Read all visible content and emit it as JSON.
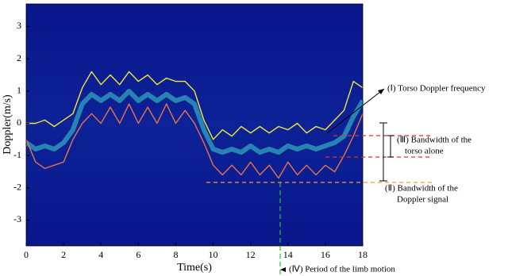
{
  "chart_data": {
    "type": "line",
    "x_label": "Time(s)",
    "y_label": "Doppler(m/s)",
    "x": [
      0,
      0.5,
      1,
      1.5,
      2,
      2.5,
      3,
      3.5,
      4,
      4.5,
      5,
      5.5,
      6,
      6.5,
      7,
      7.5,
      8,
      8.5,
      9,
      9.5,
      10,
      10.5,
      11,
      11.5,
      12,
      12.5,
      13,
      13.5,
      14,
      14.5,
      15,
      15.5,
      16,
      16.5,
      17,
      17.5,
      18
    ],
    "series": [
      {
        "color": "#3fd6d0",
        "values": [
          -0.6,
          -0.8,
          -0.7,
          -0.8,
          -0.6,
          -0.2,
          0.6,
          0.9,
          0.7,
          0.9,
          0.7,
          1.0,
          0.7,
          0.9,
          0.7,
          0.9,
          0.7,
          0.8,
          0.6,
          -0.2,
          -0.8,
          -0.9,
          -0.8,
          -0.9,
          -0.7,
          -0.9,
          -0.8,
          -0.9,
          -0.7,
          -0.8,
          -0.7,
          -0.8,
          -0.7,
          -0.6,
          -0.4,
          0.2,
          0.7
        ]
      },
      {
        "color": "#f5e63a",
        "values": [
          0,
          0,
          0.1,
          -0.1,
          0.1,
          0.3,
          1.1,
          1.6,
          1.2,
          1.5,
          1.2,
          1.6,
          1.3,
          1.5,
          1.2,
          1.4,
          1.3,
          1.3,
          1.0,
          0.1,
          -0.5,
          -0.2,
          -0.4,
          -0.1,
          -0.3,
          -0.1,
          -0.3,
          -0.1,
          -0.2,
          0.0,
          -0.3,
          -0.1,
          -0.2,
          0.1,
          0.4,
          1.3,
          1.1
        ]
      },
      {
        "color": "#e8734a",
        "values": [
          -0.5,
          -1.2,
          -1.4,
          -1.3,
          -1.2,
          -0.5,
          0.0,
          0.3,
          0.0,
          0.5,
          0.0,
          0.6,
          0.0,
          0.5,
          0.0,
          0.6,
          0.0,
          0.4,
          0.0,
          -0.6,
          -1.3,
          -1.6,
          -1.3,
          -1.6,
          -1.2,
          -1.6,
          -1.3,
          -1.7,
          -1.2,
          -1.6,
          -1.3,
          -1.6,
          -1.3,
          -1.5,
          -1.0,
          -0.4,
          0.3
        ]
      }
    ],
    "xlim": [
      0,
      18
    ],
    "ylim": [
      -3.8,
      3.7
    ],
    "xticks": [
      0,
      2,
      4,
      6,
      8,
      10,
      12,
      14,
      16,
      18
    ],
    "yticks": [
      -3,
      -2,
      -1,
      0,
      1,
      2,
      3
    ],
    "annotations": {
      "torso": "(Ⅰ) Torso Doppler frequency",
      "torso_bandwidth": [
        "(Ⅲ) Bandwidth of the",
        "torso alone"
      ],
      "signal_bandwidth": [
        "(Ⅱ) Bandwidth of the",
        "Doppler signal"
      ],
      "period": "(Ⅳ) Period of the limb motion"
    }
  }
}
